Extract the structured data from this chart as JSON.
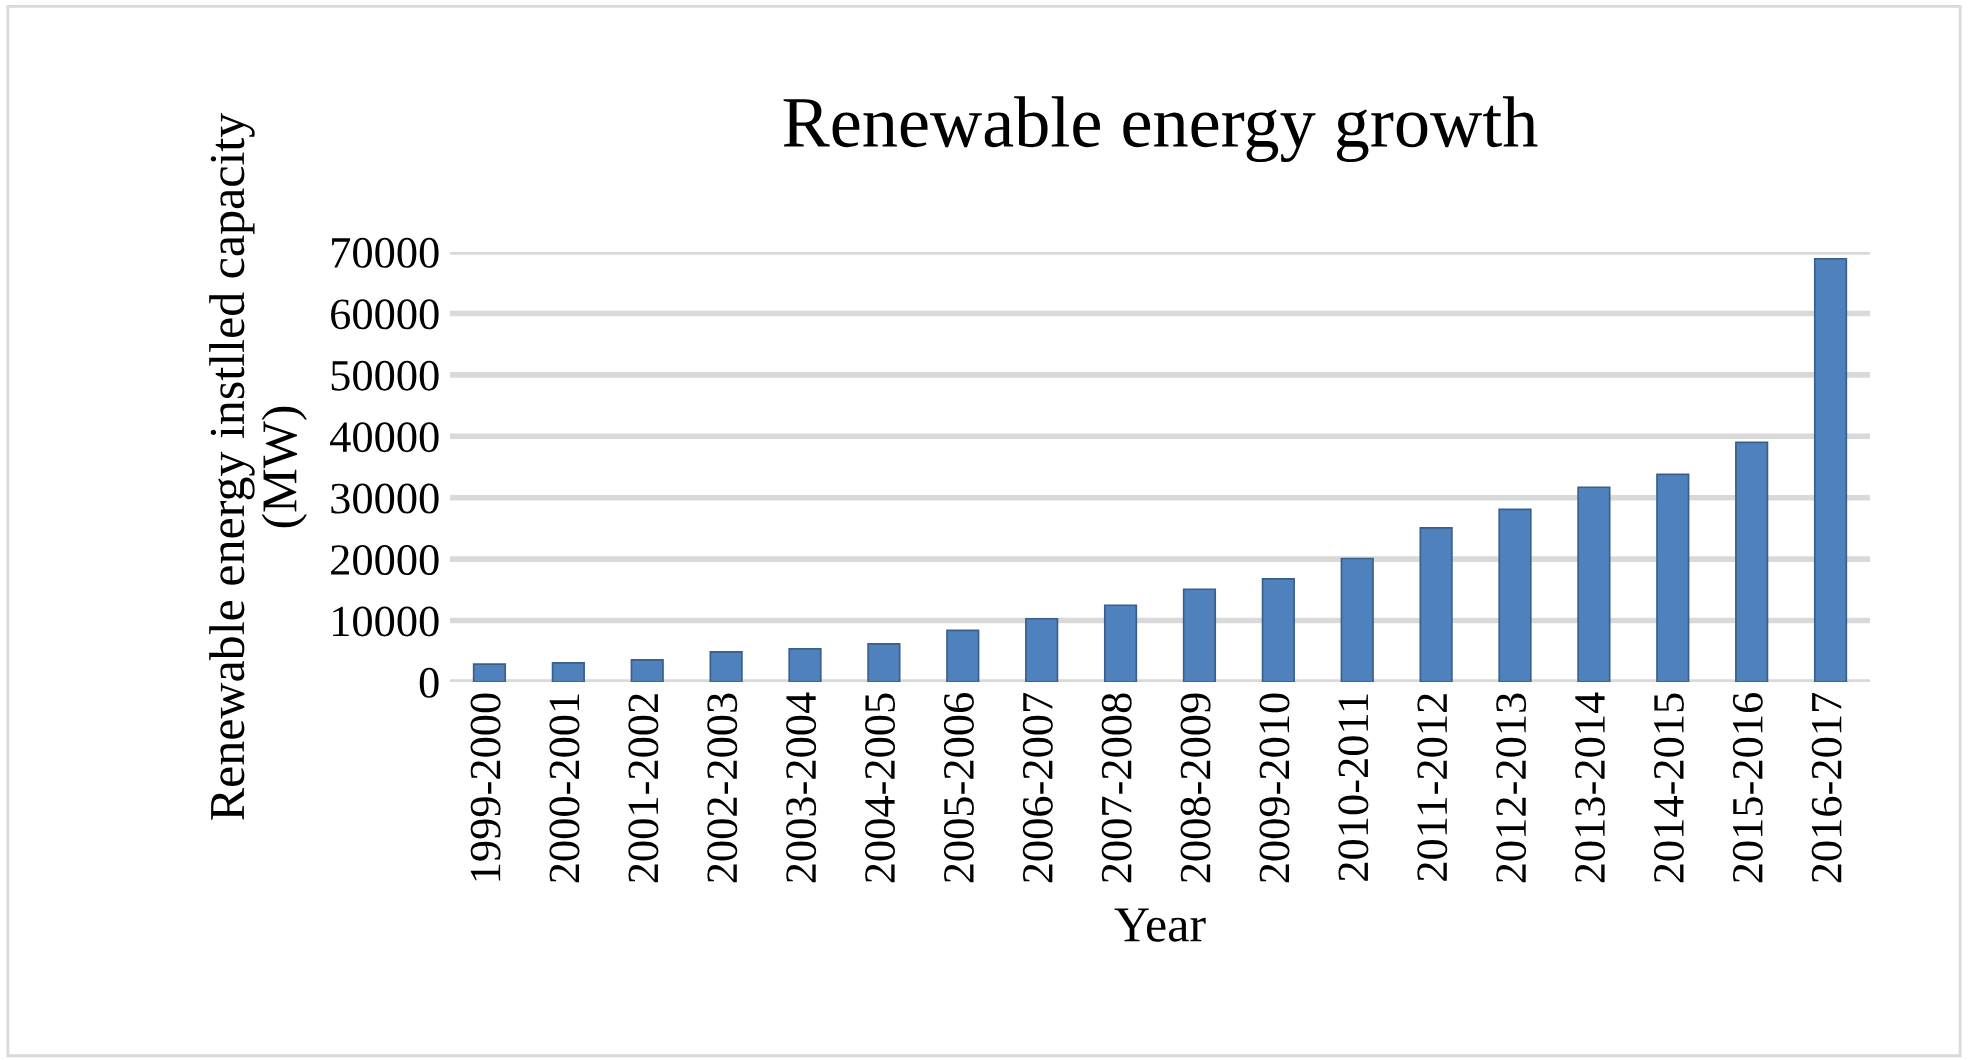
{
  "chart_data": {
    "type": "bar",
    "title": "Renewable energy growth",
    "xlabel": "Year",
    "ylabel": "Renewable energy instlled capacity\n(MW)",
    "categories": [
      "1999-2000",
      "2000-2001",
      "2001-2002",
      "2002-2003",
      "2003-2004",
      "2004-2005",
      "2005-2006",
      "2006-2007",
      "2007-2008",
      "2008-2009",
      "2009-2010",
      "2010-2011",
      "2011-2012",
      "2012-2013",
      "2013-2014",
      "2014-2015",
      "2015-2016",
      "2016-2017"
    ],
    "values": [
      2900,
      3100,
      3600,
      4900,
      5400,
      6200,
      8400,
      10300,
      12500,
      15100,
      16800,
      20100,
      25100,
      28100,
      31700,
      33800,
      39000,
      68900
    ],
    "color": "#4f81bd",
    "ylim": [
      0,
      70000
    ],
    "yticks": [
      0,
      10000,
      20000,
      30000,
      40000,
      50000,
      60000,
      70000
    ],
    "grid": "y",
    "legend": false
  }
}
